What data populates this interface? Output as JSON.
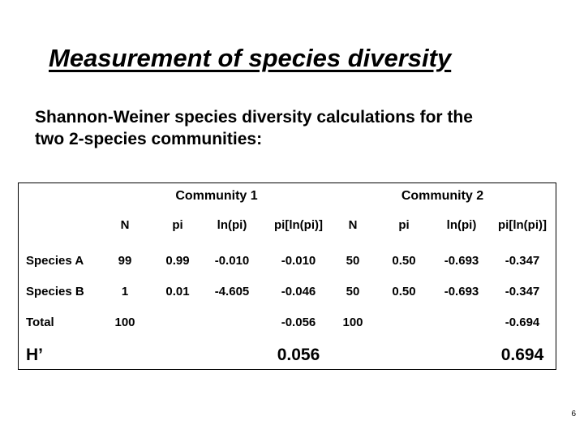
{
  "title": "Measurement of species diversity",
  "subtitle_line1": "Shannon-Weiner species diversity calculations for the",
  "subtitle_line2": "two 2-species communities:",
  "table": {
    "community1": "Community 1",
    "community2": "Community 2",
    "columns": [
      "N",
      "pi",
      "ln(pi)",
      "pi[ln(pi)]",
      "N",
      "pi",
      "ln(pi)",
      "pi[ln(pi)]"
    ],
    "rows": [
      {
        "label": "Species A",
        "values": [
          "99",
          "0.99",
          "-0.010",
          "-0.010",
          "50",
          "0.50",
          "-0.693",
          "-0.347"
        ]
      },
      {
        "label": "Species B",
        "values": [
          "1",
          "0.01",
          "-4.605",
          "-0.046",
          "50",
          "0.50",
          "-0.693",
          "-0.347"
        ]
      },
      {
        "label": "Total",
        "values": [
          "100",
          "",
          "",
          "-0.056",
          "100",
          "",
          "",
          "-0.694"
        ]
      }
    ],
    "h_label": "H’",
    "h_values": [
      "0.056",
      "0.694"
    ]
  },
  "page_number": "6"
}
